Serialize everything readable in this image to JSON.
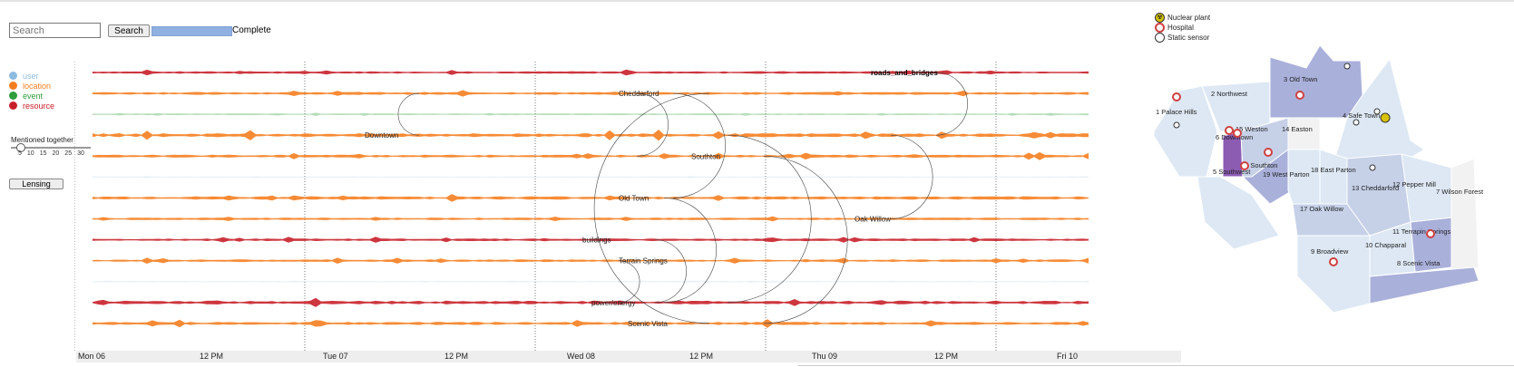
{
  "search": {
    "placeholder": "Search",
    "button": "Search",
    "status": "Complete"
  },
  "progress": {
    "fraction": 1.0
  },
  "legend": [
    {
      "label": "user",
      "color": "#8cbbe0"
    },
    {
      "label": "location",
      "color": "#f57e20"
    },
    {
      "label": "event",
      "color": "#2e9d3a"
    },
    {
      "label": "resource",
      "color": "#c8202a"
    }
  ],
  "slider": {
    "title": "Mentioned together",
    "ticks": [
      "5",
      "10",
      "15",
      "20",
      "25",
      "30"
    ],
    "value": 5
  },
  "lensing": {
    "label": "Lensing"
  },
  "axis": {
    "labels": [
      "Mon 06",
      "12 PM",
      "Tue 07",
      "12 PM",
      "Wed 08",
      "12 PM",
      "Thu 09",
      "12 PM",
      "Fri 10"
    ]
  },
  "topics": [
    {
      "label": "",
      "type": "resource",
      "strength": 0.5
    },
    {
      "label": "Cheddarford",
      "type": "location",
      "strength": 0.6
    },
    {
      "label": "",
      "type": "event",
      "strength": 0.2
    },
    {
      "label": "Downtown",
      "type": "location",
      "strength": 1.0
    },
    {
      "label": "Southton",
      "type": "location",
      "strength": 0.6
    },
    {
      "label": "",
      "type": "user",
      "strength": 0.1
    },
    {
      "label": "Old Town",
      "type": "location",
      "strength": 0.8
    },
    {
      "label": "Oak Willow",
      "type": "location",
      "strength": 0.5
    },
    {
      "label": "buildings",
      "type": "resource",
      "strength": 0.5
    },
    {
      "label": "Terrain Springs",
      "type": "location",
      "strength": 0.5
    },
    {
      "label": "",
      "type": "user",
      "strength": 0.1
    },
    {
      "label": "power/energy",
      "type": "resource",
      "strength": 0.9
    },
    {
      "label": "Scenic Vista",
      "type": "location",
      "strength": 0.7
    }
  ],
  "roads_label": "roads_and_bridges",
  "map_legend": [
    {
      "label": "Nuclear plant",
      "icon": "radiation-icon",
      "color": "#d8c200"
    },
    {
      "label": "Hospital",
      "icon": "hospital-icon",
      "color": "#d04040"
    },
    {
      "label": "Static sensor",
      "icon": "sensor-icon",
      "color": "#ffffff"
    }
  ],
  "regions": [
    {
      "label": "1 Palace Hills"
    },
    {
      "label": "2 Northwest"
    },
    {
      "label": "3 Old Town"
    },
    {
      "label": "4 Safe Town"
    },
    {
      "label": "5 Southwest"
    },
    {
      "label": "6 Downtown"
    },
    {
      "label": "7 Wilson Forest"
    },
    {
      "label": "8 Scenic Vista"
    },
    {
      "label": "9 Broadview"
    },
    {
      "label": "10 Chapparal"
    },
    {
      "label": "11 Terrapin Springs"
    },
    {
      "label": "12 Pepper Mill"
    },
    {
      "label": "13 Cheddarford"
    },
    {
      "label": "14 Easton"
    },
    {
      "label": "15 Weston"
    },
    {
      "label": "16 Southton"
    },
    {
      "label": "17 Oak Willow"
    },
    {
      "label": "18 East Parton"
    },
    {
      "label": "19 West Parton"
    }
  ]
}
